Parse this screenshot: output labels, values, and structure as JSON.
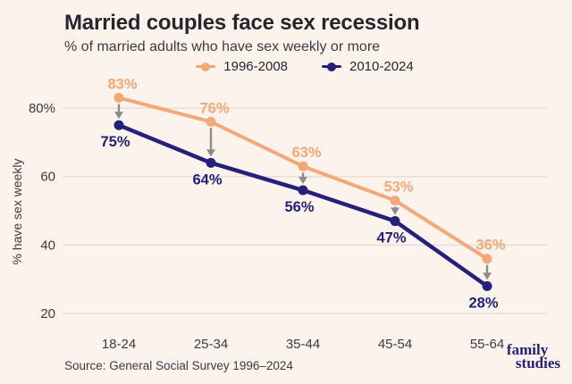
{
  "header": {
    "title": "Married couples face sex recession",
    "subtitle": "% of married adults who have sex weekly or more"
  },
  "chart_data": {
    "type": "line",
    "categories": [
      "18-24",
      "25-34",
      "35-44",
      "45-54",
      "55-64"
    ],
    "series": [
      {
        "name": "1996-2008",
        "color": "#f5a877",
        "values": [
          83,
          76,
          63,
          53,
          36
        ],
        "label_position": "above"
      },
      {
        "name": "2010-2024",
        "color": "#23217a",
        "values": [
          75,
          64,
          56,
          47,
          28
        ],
        "label_position": "below"
      }
    ],
    "ylabel": "% have sex weekly",
    "yticks": [
      {
        "value": 80,
        "label": "80%"
      },
      {
        "value": 60,
        "label": "60"
      },
      {
        "value": 40,
        "label": "40"
      },
      {
        "value": 20,
        "label": "20"
      }
    ],
    "ylim": [
      20,
      88
    ],
    "grid": true,
    "legend_position": "top-center",
    "annotation_note": "gray down arrows mark the decline from 1996-2008 to 2010-2024 in each age group"
  },
  "footer": {
    "source": "Source: General Social Survey 1996–2024",
    "logo_line1": "family",
    "logo_line2": "studies"
  },
  "colors": {
    "background": "#fcf3ec",
    "accent_orange": "#f5a877",
    "accent_navy": "#23217a",
    "grid": "#e3dfda",
    "arrow": "#8c8c8c",
    "title_text": "#26262e",
    "body_text": "#3b3b41"
  }
}
